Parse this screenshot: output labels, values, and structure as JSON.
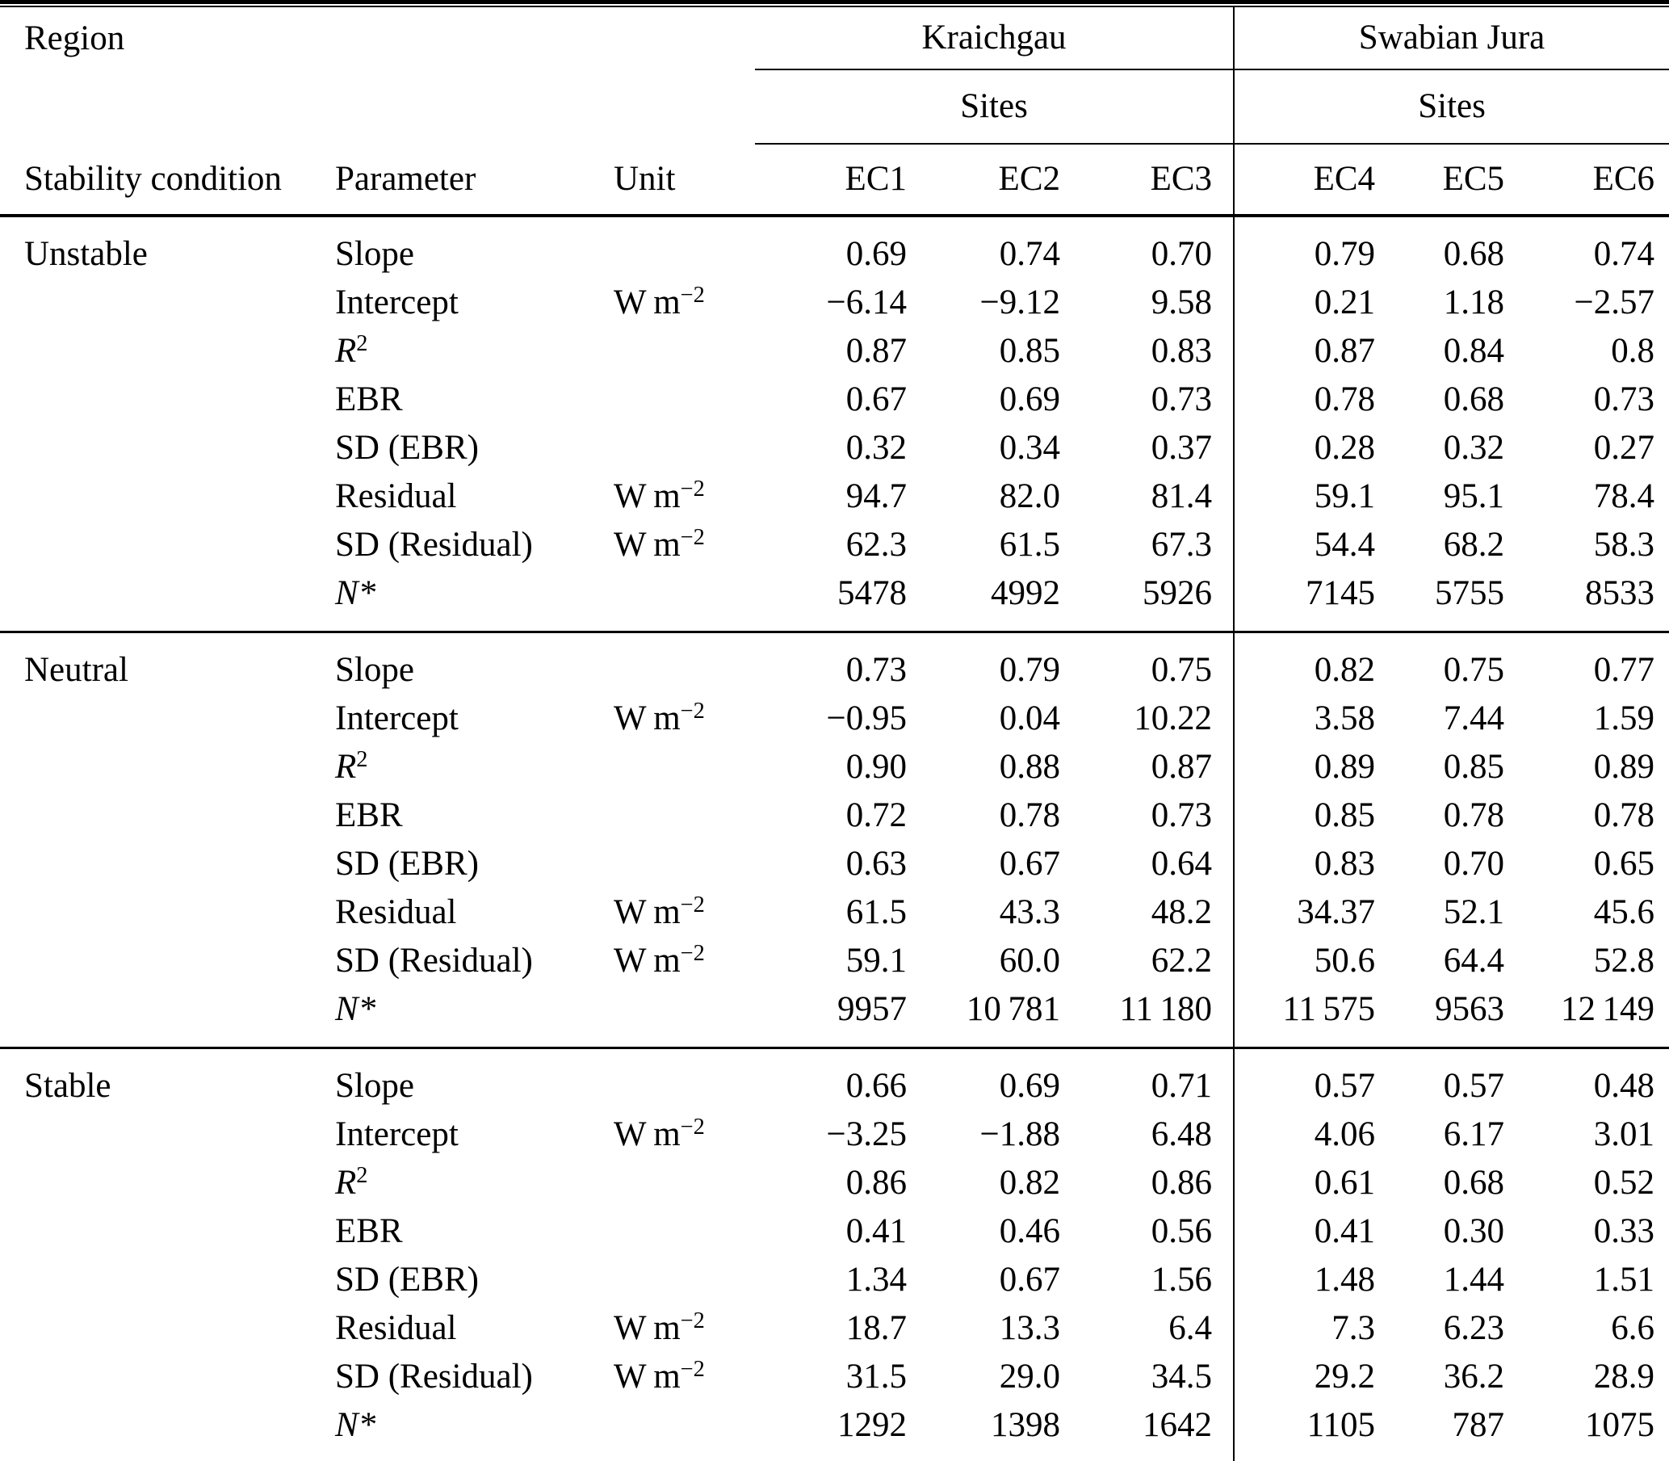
{
  "table": {
    "region_label": "Region",
    "stability_header": "Stability condition",
    "parameter_header": "Parameter",
    "unit_header": "Unit",
    "groups": [
      {
        "name": "Kraichgau",
        "sites_label": "Sites",
        "site_columns": [
          "EC1",
          "EC2",
          "EC3"
        ]
      },
      {
        "name": "Swabian Jura",
        "sites_label": "Sites",
        "site_columns": [
          "EC4",
          "EC5",
          "EC6"
        ]
      }
    ],
    "sections": [
      {
        "condition": "Unstable",
        "rows": [
          {
            "param": {
              "text": "Slope"
            },
            "unit": null,
            "values": [
              "0.69",
              "0.74",
              "0.70",
              "0.79",
              "0.68",
              "0.74"
            ]
          },
          {
            "param": {
              "text": "Intercept"
            },
            "unit": {
              "base": "W m",
              "sup": "−2"
            },
            "values": [
              "−6.14",
              "−9.12",
              "9.58",
              "0.21",
              "1.18",
              "−2.57"
            ]
          },
          {
            "param": {
              "text": "R",
              "italic": true,
              "sup": "2"
            },
            "unit": null,
            "values": [
              "0.87",
              "0.85",
              "0.83",
              "0.87",
              "0.84",
              "0.8"
            ]
          },
          {
            "param": {
              "text": "EBR"
            },
            "unit": null,
            "values": [
              "0.67",
              "0.69",
              "0.73",
              "0.78",
              "0.68",
              "0.73"
            ]
          },
          {
            "param": {
              "text": "SD (EBR)"
            },
            "unit": null,
            "values": [
              "0.32",
              "0.34",
              "0.37",
              "0.28",
              "0.32",
              "0.27"
            ]
          },
          {
            "param": {
              "text": "Residual"
            },
            "unit": {
              "base": "W m",
              "sup": "−2"
            },
            "values": [
              "94.7",
              "82.0",
              "81.4",
              "59.1",
              "95.1",
              "78.4"
            ]
          },
          {
            "param": {
              "text": "SD (Residual)"
            },
            "unit": {
              "base": "W m",
              "sup": "−2"
            },
            "values": [
              "62.3",
              "61.5",
              "67.3",
              "54.4",
              "68.2",
              "58.3"
            ]
          },
          {
            "param": {
              "text": "N",
              "italic": true,
              "suffix": "*"
            },
            "unit": null,
            "values": [
              "5478",
              "4992",
              "5926",
              "7145",
              "5755",
              "8533"
            ]
          }
        ]
      },
      {
        "condition": "Neutral",
        "rows": [
          {
            "param": {
              "text": "Slope"
            },
            "unit": null,
            "values": [
              "0.73",
              "0.79",
              "0.75",
              "0.82",
              "0.75",
              "0.77"
            ]
          },
          {
            "param": {
              "text": "Intercept"
            },
            "unit": {
              "base": "W m",
              "sup": "−2"
            },
            "values": [
              "−0.95",
              "0.04",
              "10.22",
              "3.58",
              "7.44",
              "1.59"
            ]
          },
          {
            "param": {
              "text": "R",
              "italic": true,
              "sup": "2"
            },
            "unit": null,
            "values": [
              "0.90",
              "0.88",
              "0.87",
              "0.89",
              "0.85",
              "0.89"
            ]
          },
          {
            "param": {
              "text": "EBR"
            },
            "unit": null,
            "values": [
              "0.72",
              "0.78",
              "0.73",
              "0.85",
              "0.78",
              "0.78"
            ]
          },
          {
            "param": {
              "text": "SD (EBR)"
            },
            "unit": null,
            "values": [
              "0.63",
              "0.67",
              "0.64",
              "0.83",
              "0.70",
              "0.65"
            ]
          },
          {
            "param": {
              "text": "Residual"
            },
            "unit": {
              "base": "W m",
              "sup": "−2"
            },
            "values": [
              "61.5",
              "43.3",
              "48.2",
              "34.37",
              "52.1",
              "45.6"
            ]
          },
          {
            "param": {
              "text": "SD (Residual)"
            },
            "unit": {
              "base": "W m",
              "sup": "−2"
            },
            "values": [
              "59.1",
              "60.0",
              "62.2",
              "50.6",
              "64.4",
              "52.8"
            ]
          },
          {
            "param": {
              "text": "N",
              "italic": true,
              "suffix": "*"
            },
            "unit": null,
            "values": [
              "9957",
              "10 781",
              "11 180",
              "11 575",
              "9563",
              "12 149"
            ]
          }
        ]
      },
      {
        "condition": "Stable",
        "rows": [
          {
            "param": {
              "text": "Slope"
            },
            "unit": null,
            "values": [
              "0.66",
              "0.69",
              "0.71",
              "0.57",
              "0.57",
              "0.48"
            ]
          },
          {
            "param": {
              "text": "Intercept"
            },
            "unit": {
              "base": "W m",
              "sup": "−2"
            },
            "values": [
              "−3.25",
              "−1.88",
              "6.48",
              "4.06",
              "6.17",
              "3.01"
            ]
          },
          {
            "param": {
              "text": "R",
              "italic": true,
              "sup": "2"
            },
            "unit": null,
            "values": [
              "0.86",
              "0.82",
              "0.86",
              "0.61",
              "0.68",
              "0.52"
            ]
          },
          {
            "param": {
              "text": "EBR"
            },
            "unit": null,
            "values": [
              "0.41",
              "0.46",
              "0.56",
              "0.41",
              "0.30",
              "0.33"
            ]
          },
          {
            "param": {
              "text": "SD (EBR)"
            },
            "unit": null,
            "values": [
              "1.34",
              "0.67",
              "1.56",
              "1.48",
              "1.44",
              "1.51"
            ]
          },
          {
            "param": {
              "text": "Residual"
            },
            "unit": {
              "base": "W m",
              "sup": "−2"
            },
            "values": [
              "18.7",
              "13.3",
              "6.4",
              "7.3",
              "6.23",
              "6.6"
            ]
          },
          {
            "param": {
              "text": "SD (Residual)"
            },
            "unit": {
              "base": "W m",
              "sup": "−2"
            },
            "values": [
              "31.5",
              "29.0",
              "34.5",
              "29.2",
              "36.2",
              "28.9"
            ]
          },
          {
            "param": {
              "text": "N",
              "italic": true,
              "suffix": "*"
            },
            "unit": null,
            "values": [
              "1292",
              "1398",
              "1642",
              "1105",
              "787",
              "1075"
            ]
          }
        ]
      }
    ]
  }
}
